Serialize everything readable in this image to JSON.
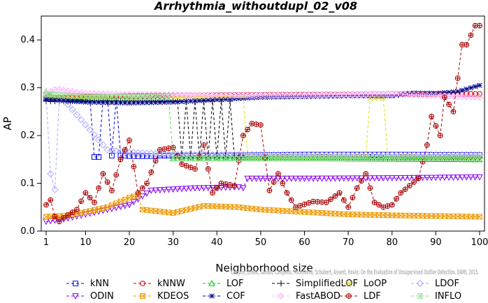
{
  "chart_data": {
    "type": "line",
    "title": "Arrhythmia_withoutdupl_02_v08",
    "xlabel": "Neighborhood size",
    "ylabel": "AP",
    "xlim": [
      0,
      101
    ],
    "ylim": [
      0,
      0.45
    ],
    "x_ticks": [
      1,
      10,
      20,
      30,
      40,
      50,
      60,
      70,
      80,
      90,
      100
    ],
    "y_ticks": [
      0.0,
      0.1,
      0.2,
      0.3,
      0.4
    ],
    "grid": false,
    "legend_position": "bottom",
    "watermark": "Campos, Zimek, Sander, Campello, Micenkova, Schubert, Assent, Houle: On the Evaluation of Unsupervised Outlier Detection. DAMI, 2015.",
    "series": [
      {
        "name": "kNN",
        "color": "#0000ee",
        "marker": "square",
        "dash": "4,3",
        "keypoints": [
          [
            1,
            0.278
          ],
          [
            2,
            0.276
          ],
          [
            10,
            0.275
          ],
          [
            11,
            0.277
          ],
          [
            12,
            0.155
          ],
          [
            13,
            0.155
          ],
          [
            14,
            0.278
          ],
          [
            15,
            0.278
          ],
          [
            16,
            0.158
          ],
          [
            17,
            0.278
          ],
          [
            18,
            0.158
          ],
          [
            19,
            0.158
          ],
          [
            20,
            0.157
          ],
          [
            26,
            0.157
          ],
          [
            27,
            0.158
          ],
          [
            40,
            0.158
          ],
          [
            50,
            0.159
          ],
          [
            60,
            0.16
          ],
          [
            70,
            0.16
          ],
          [
            80,
            0.16
          ],
          [
            100,
            0.159
          ]
        ]
      },
      {
        "name": "kNNW",
        "color": "#cc0000",
        "marker": "circle",
        "dash": "4,3",
        "keypoints": [
          [
            1,
            0.279
          ],
          [
            20,
            0.283
          ],
          [
            40,
            0.285
          ],
          [
            60,
            0.286
          ],
          [
            80,
            0.287
          ],
          [
            100,
            0.287
          ]
        ]
      },
      {
        "name": "LOF",
        "color": "#00cc00",
        "marker": "triangle",
        "dash": "4,3",
        "keypoints": [
          [
            1,
            0.292
          ],
          [
            2,
            0.285
          ],
          [
            3,
            0.28
          ],
          [
            10,
            0.278
          ],
          [
            29,
            0.276
          ],
          [
            30,
            0.152
          ],
          [
            60,
            0.152
          ],
          [
            100,
            0.15
          ]
        ]
      },
      {
        "name": "SimplifiedLOF",
        "color": "#000000",
        "marker": "plus",
        "dash": "4,3",
        "keypoints": [
          [
            1,
            0.272
          ],
          [
            20,
            0.272
          ],
          [
            31,
            0.272
          ],
          [
            32,
            0.155
          ],
          [
            33,
            0.272
          ],
          [
            34,
            0.155
          ],
          [
            35,
            0.272
          ],
          [
            36,
            0.155
          ],
          [
            37,
            0.272
          ],
          [
            38,
            0.155
          ],
          [
            39,
            0.272
          ],
          [
            40,
            0.155
          ],
          [
            41,
            0.272
          ],
          [
            42,
            0.155
          ],
          [
            43,
            0.272
          ],
          [
            44,
            0.155
          ],
          [
            60,
            0.155
          ],
          [
            100,
            0.153
          ]
        ]
      },
      {
        "name": "LoOP",
        "color": "#dddd00",
        "marker": "x",
        "dash": "4,3",
        "keypoints": [
          [
            1,
            0.28
          ],
          [
            46,
            0.28
          ],
          [
            47,
            0.158
          ],
          [
            74,
            0.158
          ],
          [
            75,
            0.278
          ],
          [
            78,
            0.278
          ],
          [
            79,
            0.158
          ],
          [
            100,
            0.157
          ]
        ]
      },
      {
        "name": "LDOF",
        "color": "#aaaaff",
        "marker": "diamond",
        "dash": "4,3",
        "keypoints": [
          [
            1,
            0.28
          ],
          [
            2,
            0.12
          ],
          [
            3,
            0.087
          ],
          [
            4,
            0.275
          ],
          [
            5,
            0.275
          ],
          [
            15,
            0.17
          ],
          [
            20,
            0.165
          ],
          [
            30,
            0.16
          ],
          [
            60,
            0.16
          ],
          [
            100,
            0.16
          ]
        ]
      },
      {
        "name": "ODIN",
        "color": "#8800ee",
        "marker": "triangle-down",
        "dash": "4,3",
        "keypoints": [
          [
            1,
            0.02
          ],
          [
            5,
            0.025
          ],
          [
            10,
            0.035
          ],
          [
            15,
            0.045
          ],
          [
            20,
            0.055
          ],
          [
            25,
            0.085
          ],
          [
            35,
            0.09
          ],
          [
            45,
            0.092
          ],
          [
            46,
            0.09
          ],
          [
            47,
            0.11
          ],
          [
            60,
            0.11
          ],
          [
            80,
            0.111
          ],
          [
            100,
            0.113
          ]
        ]
      },
      {
        "name": "KDEOS",
        "color": "#ee9900",
        "marker": "square-x",
        "dash": "4,3",
        "keypoints": [
          [
            1,
            0.03
          ],
          [
            5,
            0.032
          ],
          [
            10,
            0.04
          ],
          [
            15,
            0.05
          ],
          [
            20,
            0.07
          ],
          [
            22,
            0.075
          ],
          [
            23,
            0.045
          ],
          [
            30,
            0.038
          ],
          [
            37,
            0.053
          ],
          [
            45,
            0.05
          ],
          [
            50,
            0.045
          ],
          [
            60,
            0.04
          ],
          [
            70,
            0.035
          ],
          [
            80,
            0.033
          ],
          [
            100,
            0.03
          ]
        ]
      },
      {
        "name": "COF",
        "color": "#000088",
        "marker": "asterisk",
        "dash": "4,3",
        "keypoints": [
          [
            1,
            0.276
          ],
          [
            10,
            0.27
          ],
          [
            20,
            0.268
          ],
          [
            30,
            0.27
          ],
          [
            50,
            0.28
          ],
          [
            70,
            0.283
          ],
          [
            80,
            0.283
          ],
          [
            85,
            0.289
          ],
          [
            90,
            0.288
          ],
          [
            95,
            0.292
          ],
          [
            100,
            0.305
          ]
        ]
      },
      {
        "name": "FastABOD",
        "color": "#ffbbff",
        "marker": "diamond-plus",
        "dash": "4,3",
        "keypoints": [
          [
            1,
            0.29
          ],
          [
            2,
            0.292
          ],
          [
            3,
            0.296
          ],
          [
            4,
            0.297
          ],
          [
            5,
            0.295
          ],
          [
            10,
            0.288
          ],
          [
            20,
            0.286
          ],
          [
            40,
            0.284
          ],
          [
            60,
            0.285
          ],
          [
            80,
            0.287
          ],
          [
            100,
            0.28
          ]
        ]
      },
      {
        "name": "LDF",
        "color": "#aa0000",
        "marker": "circle-plus",
        "dash": "4,3",
        "keypoints": [
          [
            1,
            0.055
          ],
          [
            2,
            0.065
          ],
          [
            3,
            0.03
          ],
          [
            4,
            0.02
          ],
          [
            5,
            0.028
          ],
          [
            8,
            0.045
          ],
          [
            10,
            0.08
          ],
          [
            12,
            0.06
          ],
          [
            14,
            0.12
          ],
          [
            16,
            0.085
          ],
          [
            18,
            0.15
          ],
          [
            20,
            0.19
          ],
          [
            22,
            0.08
          ],
          [
            24,
            0.1
          ],
          [
            27,
            0.17
          ],
          [
            30,
            0.175
          ],
          [
            32,
            0.14
          ],
          [
            35,
            0.13
          ],
          [
            37,
            0.18
          ],
          [
            39,
            0.08
          ],
          [
            41,
            0.1
          ],
          [
            44,
            0.095
          ],
          [
            46,
            0.2
          ],
          [
            48,
            0.225
          ],
          [
            50,
            0.222
          ],
          [
            52,
            0.085
          ],
          [
            54,
            0.12
          ],
          [
            56,
            0.08
          ],
          [
            58,
            0.05
          ],
          [
            62,
            0.062
          ],
          [
            65,
            0.06
          ],
          [
            68,
            0.08
          ],
          [
            70,
            0.05
          ],
          [
            72,
            0.09
          ],
          [
            74,
            0.12
          ],
          [
            76,
            0.06
          ],
          [
            78,
            0.05
          ],
          [
            80,
            0.055
          ],
          [
            82,
            0.08
          ],
          [
            84,
            0.095
          ],
          [
            86,
            0.11
          ],
          [
            88,
            0.18
          ],
          [
            89,
            0.24
          ],
          [
            91,
            0.2
          ],
          [
            92,
            0.28
          ],
          [
            94,
            0.25
          ],
          [
            96,
            0.39
          ],
          [
            97,
            0.39
          ],
          [
            99,
            0.43
          ],
          [
            100,
            0.43
          ]
        ]
      },
      {
        "name": "INFLO",
        "color": "#88dd88",
        "marker": "hourglass",
        "dash": "4,3",
        "keypoints": [
          [
            1,
            0.286
          ],
          [
            10,
            0.282
          ],
          [
            29,
            0.28
          ],
          [
            30,
            0.152
          ],
          [
            60,
            0.152
          ],
          [
            100,
            0.152
          ]
        ]
      }
    ]
  }
}
